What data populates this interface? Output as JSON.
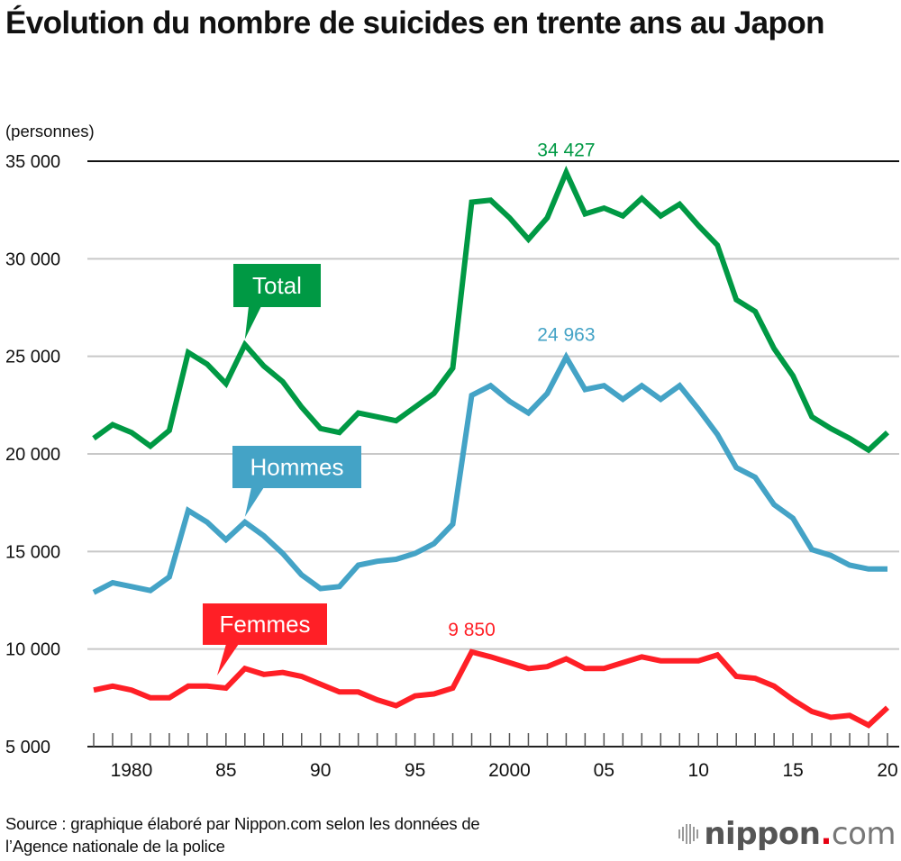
{
  "title": "Évolution du nombre de suicides en trente ans au Japon",
  "source": {
    "line1": "Source : graphique élaboré par Nippon.com selon les données de",
    "line2": "l’Agence nationale de la police"
  },
  "logo": {
    "name": "nippon",
    "dot": ".",
    "suffix": "com"
  },
  "colors": {
    "total": "#009944",
    "hommes": "#44a3c6",
    "femmes": "#ff1f26",
    "grid": "#c8c8c8",
    "axis": "#222222"
  },
  "chart_data": {
    "type": "line",
    "title": "Évolution du nombre de suicides en trente ans au Japon",
    "ylabel": "(personnes)",
    "xlabel": "",
    "ylim": [
      5000,
      35000
    ],
    "xlim": [
      1978,
      2020
    ],
    "grid": true,
    "y_ticks": [
      5000,
      10000,
      15000,
      20000,
      25000,
      30000,
      35000
    ],
    "y_tick_labels": [
      "5 000",
      "10 000",
      "15 000",
      "20 000",
      "25 000",
      "30 000",
      "35 000"
    ],
    "x_tick_labels": [
      {
        "year": 1980,
        "label": "1980"
      },
      {
        "year": 1985,
        "label": "85"
      },
      {
        "year": 1990,
        "label": "90"
      },
      {
        "year": 1995,
        "label": "95"
      },
      {
        "year": 2000,
        "label": "2000"
      },
      {
        "year": 2005,
        "label": "05"
      },
      {
        "year": 2010,
        "label": "10"
      },
      {
        "year": 2015,
        "label": "15"
      },
      {
        "year": 2020,
        "label": "20"
      }
    ],
    "x": [
      1978,
      1979,
      1980,
      1981,
      1982,
      1983,
      1984,
      1985,
      1986,
      1987,
      1988,
      1989,
      1990,
      1991,
      1992,
      1993,
      1994,
      1995,
      1996,
      1997,
      1998,
      1999,
      2000,
      2001,
      2002,
      2003,
      2004,
      2005,
      2006,
      2007,
      2008,
      2009,
      2010,
      2011,
      2012,
      2013,
      2014,
      2015,
      2016,
      2017,
      2018,
      2019,
      2020
    ],
    "series": [
      {
        "key": "total",
        "name": "Total",
        "values": [
          20800,
          21500,
          21100,
          20400,
          21200,
          25200,
          24600,
          23600,
          25600,
          24500,
          23700,
          22400,
          21300,
          21100,
          22100,
          21900,
          21700,
          22400,
          23100,
          24400,
          32900,
          33000,
          32100,
          31000,
          32100,
          34427,
          32300,
          32600,
          32200,
          33100,
          32200,
          32800,
          31700,
          30700,
          27900,
          27300,
          25400,
          24000,
          21900,
          21300,
          20800,
          20200,
          21100
        ],
        "annotation": {
          "year": 2003,
          "label": "34 427"
        },
        "legend_label": "Total",
        "legend_anchor_year": 1986
      },
      {
        "key": "hommes",
        "name": "Hommes",
        "values": [
          12900,
          13400,
          13200,
          13000,
          13700,
          17100,
          16500,
          15600,
          16500,
          15800,
          14900,
          13800,
          13100,
          13200,
          14300,
          14500,
          14600,
          14900,
          15400,
          16400,
          23000,
          23500,
          22700,
          22100,
          23100,
          24963,
          23300,
          23500,
          22800,
          23500,
          22800,
          23500,
          22300,
          21000,
          19300,
          18800,
          17400,
          16700,
          15100,
          14800,
          14300,
          14100,
          14100
        ],
        "annotation": {
          "year": 2003,
          "label": "24 963"
        },
        "legend_label": "Hommes",
        "legend_anchor_year": 1986
      },
      {
        "key": "femmes",
        "name": "Femmes",
        "values": [
          7900,
          8100,
          7900,
          7500,
          7500,
          8100,
          8100,
          8000,
          9000,
          8700,
          8800,
          8600,
          8200,
          7800,
          7800,
          7400,
          7100,
          7600,
          7700,
          8000,
          9850,
          9600,
          9300,
          9000,
          9100,
          9500,
          9000,
          9000,
          9300,
          9600,
          9400,
          9400,
          9400,
          9700,
          8600,
          8500,
          8100,
          7400,
          6800,
          6500,
          6600,
          6100,
          7000
        ],
        "annotation": {
          "year": 1998,
          "label": "9 850"
        },
        "legend_label": "Femmes",
        "legend_anchor_year": 1984
      }
    ]
  }
}
